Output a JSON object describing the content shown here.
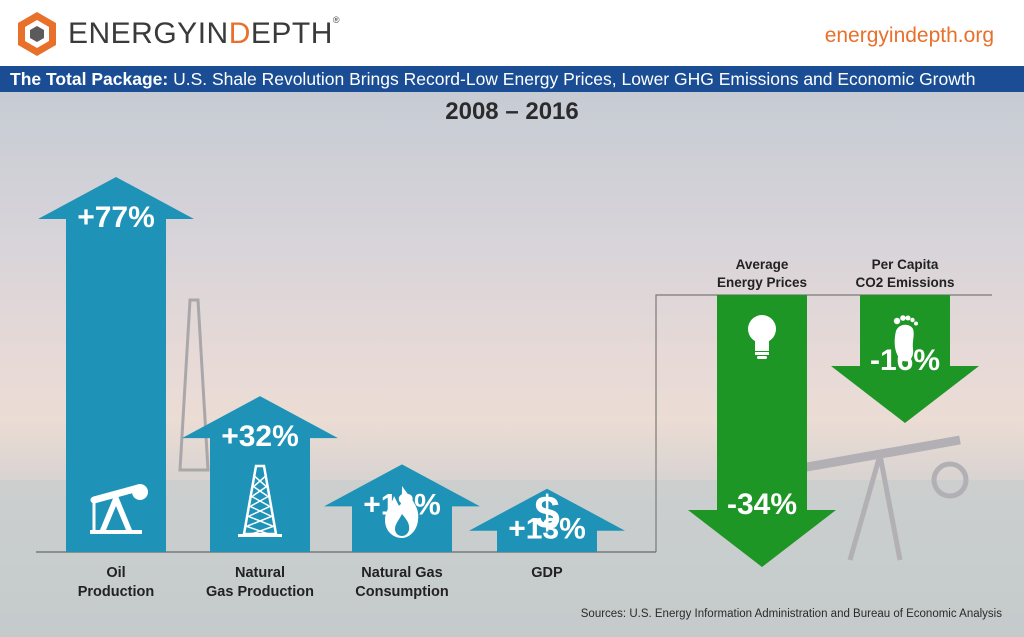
{
  "header": {
    "logo_text_1": "ENERGYIN",
    "logo_text_2": "D",
    "logo_text_3": "EPTH",
    "logo_registered": "®",
    "site": "energyindepth.org",
    "brand_color": "#e8702a"
  },
  "banner": {
    "lead": "The Total Package:",
    "text": " U.S. Shale Revolution Brings Record-Low Energy Prices, Lower GHG Emissions and Economic Growth",
    "color": "#1a4d94"
  },
  "chart_data": {
    "type": "bar",
    "title": "2008 – 2016",
    "categories": [
      "Oil Production",
      "Natural Gas Production",
      "Natural Gas Consumption",
      "GDP",
      "Average Energy Prices",
      "Per Capita CO2 Emissions"
    ],
    "values": [
      77,
      32,
      18,
      13,
      -34,
      -16
    ],
    "value_labels": [
      "+77%",
      "+32%",
      "+18%",
      "+13%",
      "-34%",
      "-16%"
    ],
    "label_lines": [
      [
        "Oil",
        "Production"
      ],
      [
        "Natural",
        "Gas Production"
      ],
      [
        "Natural Gas",
        "Consumption"
      ],
      [
        "GDP"
      ],
      [
        "Average",
        "Energy Prices"
      ],
      [
        "Per Capita",
        "CO2 Emissions"
      ]
    ],
    "icons": [
      "pumpjack-icon",
      "drilling-rig-icon",
      "flame-icon",
      "dollar-icon",
      "lightbulb-icon",
      "footprint-icon"
    ],
    "up_color": "#1f93b7",
    "down_color": "#1e9626"
  },
  "sources": "Sources: U.S. Energy Information Administration and Bureau of Economic Analysis"
}
